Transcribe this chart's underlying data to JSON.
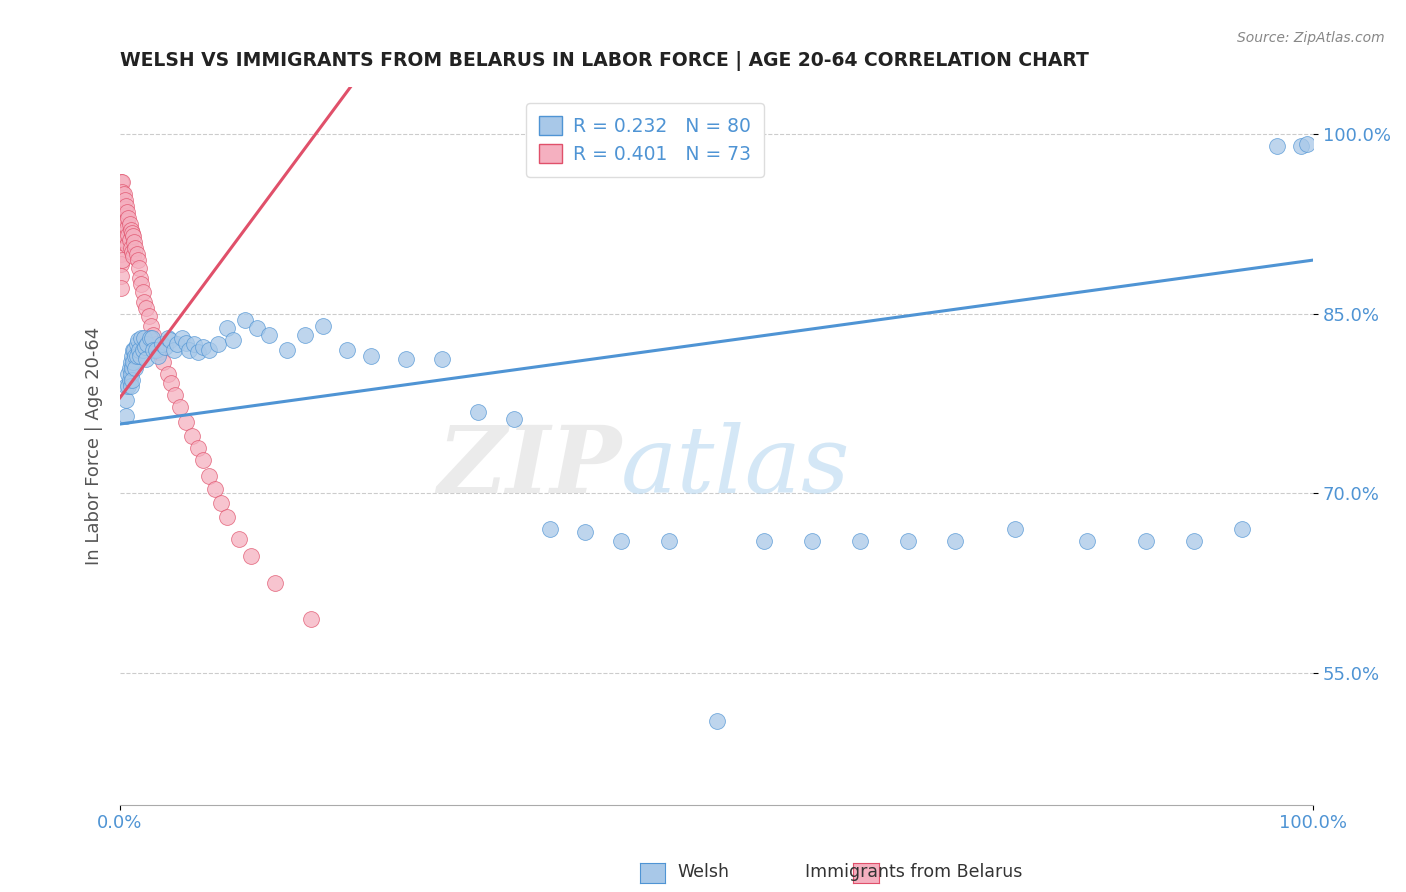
{
  "title": "WELSH VS IMMIGRANTS FROM BELARUS IN LABOR FORCE | AGE 20-64 CORRELATION CHART",
  "source": "Source: ZipAtlas.com",
  "ylabel": "In Labor Force | Age 20-64",
  "welsh_label": "Welsh",
  "belarus_label": "Immigrants from Belarus",
  "ytick_labels": [
    "100.0%",
    "85.0%",
    "70.0%",
    "55.0%"
  ],
  "ytick_values": [
    1.0,
    0.85,
    0.7,
    0.55
  ],
  "xlim": [
    0.0,
    1.0
  ],
  "ylim": [
    0.44,
    1.04
  ],
  "welsh_R": 0.232,
  "welsh_N": 80,
  "belarus_R": 0.401,
  "belarus_N": 73,
  "welsh_color": "#a8c8e8",
  "belarus_color": "#f5b0c0",
  "welsh_line_color": "#4f94d4",
  "belarus_line_color": "#e0506a",
  "welsh_x": [
    0.005,
    0.005,
    0.005,
    0.007,
    0.007,
    0.008,
    0.008,
    0.009,
    0.009,
    0.009,
    0.01,
    0.01,
    0.01,
    0.011,
    0.011,
    0.012,
    0.013,
    0.013,
    0.014,
    0.014,
    0.015,
    0.016,
    0.017,
    0.018,
    0.019,
    0.02,
    0.021,
    0.022,
    0.023,
    0.025,
    0.027,
    0.028,
    0.03,
    0.032,
    0.035,
    0.038,
    0.04,
    0.042,
    0.045,
    0.048,
    0.052,
    0.055,
    0.058,
    0.062,
    0.065,
    0.07,
    0.075,
    0.082,
    0.09,
    0.095,
    0.105,
    0.115,
    0.125,
    0.14,
    0.155,
    0.17,
    0.19,
    0.21,
    0.24,
    0.27,
    0.3,
    0.33,
    0.36,
    0.39,
    0.42,
    0.46,
    0.5,
    0.54,
    0.58,
    0.62,
    0.66,
    0.7,
    0.75,
    0.81,
    0.86,
    0.9,
    0.94,
    0.97,
    0.99,
    0.995
  ],
  "welsh_y": [
    0.79,
    0.778,
    0.765,
    0.8,
    0.79,
    0.805,
    0.795,
    0.81,
    0.8,
    0.79,
    0.815,
    0.805,
    0.795,
    0.82,
    0.81,
    0.82,
    0.815,
    0.805,
    0.825,
    0.815,
    0.828,
    0.82,
    0.815,
    0.83,
    0.82,
    0.83,
    0.822,
    0.812,
    0.825,
    0.83,
    0.83,
    0.82,
    0.82,
    0.815,
    0.825,
    0.822,
    0.83,
    0.828,
    0.82,
    0.825,
    0.83,
    0.826,
    0.82,
    0.825,
    0.818,
    0.822,
    0.82,
    0.825,
    0.838,
    0.828,
    0.845,
    0.838,
    0.832,
    0.82,
    0.832,
    0.84,
    0.82,
    0.815,
    0.812,
    0.812,
    0.768,
    0.762,
    0.67,
    0.668,
    0.66,
    0.66,
    0.51,
    0.66,
    0.66,
    0.66,
    0.66,
    0.66,
    0.67,
    0.66,
    0.66,
    0.66,
    0.67,
    0.99,
    0.99,
    0.992
  ],
  "belarus_x": [
    0.001,
    0.001,
    0.001,
    0.001,
    0.001,
    0.001,
    0.001,
    0.001,
    0.001,
    0.001,
    0.001,
    0.002,
    0.002,
    0.002,
    0.002,
    0.002,
    0.002,
    0.002,
    0.003,
    0.003,
    0.003,
    0.003,
    0.004,
    0.004,
    0.004,
    0.005,
    0.005,
    0.005,
    0.006,
    0.006,
    0.006,
    0.007,
    0.007,
    0.008,
    0.008,
    0.009,
    0.009,
    0.01,
    0.01,
    0.011,
    0.011,
    0.012,
    0.013,
    0.014,
    0.015,
    0.016,
    0.017,
    0.018,
    0.019,
    0.02,
    0.022,
    0.024,
    0.026,
    0.028,
    0.03,
    0.033,
    0.036,
    0.04,
    0.043,
    0.046,
    0.05,
    0.055,
    0.06,
    0.065,
    0.07,
    0.075,
    0.08,
    0.085,
    0.09,
    0.1,
    0.11,
    0.13,
    0.16
  ],
  "belarus_y": [
    0.96,
    0.95,
    0.94,
    0.935,
    0.928,
    0.918,
    0.91,
    0.9,
    0.892,
    0.882,
    0.872,
    0.96,
    0.952,
    0.942,
    0.93,
    0.92,
    0.91,
    0.895,
    0.95,
    0.938,
    0.925,
    0.912,
    0.945,
    0.932,
    0.918,
    0.94,
    0.928,
    0.915,
    0.935,
    0.922,
    0.908,
    0.93,
    0.916,
    0.925,
    0.912,
    0.92,
    0.905,
    0.918,
    0.902,
    0.915,
    0.898,
    0.91,
    0.905,
    0.9,
    0.895,
    0.888,
    0.88,
    0.875,
    0.868,
    0.86,
    0.855,
    0.848,
    0.84,
    0.832,
    0.825,
    0.818,
    0.81,
    0.8,
    0.792,
    0.782,
    0.772,
    0.76,
    0.748,
    0.738,
    0.728,
    0.715,
    0.704,
    0.692,
    0.68,
    0.662,
    0.648,
    0.625,
    0.595
  ],
  "trendline_welsh_x0": 0.0,
  "trendline_welsh_y0": 0.758,
  "trendline_welsh_x1": 1.0,
  "trendline_welsh_y1": 0.895,
  "trendline_belarus_x0": 0.0,
  "trendline_belarus_y0": 0.78,
  "trendline_belarus_x1": 0.16,
  "trendline_belarus_y1": 0.995
}
